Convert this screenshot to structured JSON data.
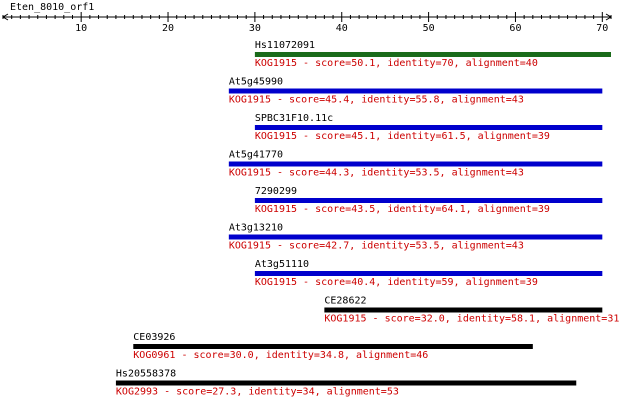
{
  "query": {
    "name": "Eten_8010_orf1",
    "axis_max": 71,
    "tick_labels": [
      10,
      20,
      30,
      40,
      50,
      60,
      70
    ]
  },
  "chart_data": {
    "type": "alignment-map",
    "x_range": [
      1,
      71
    ],
    "hits": [
      {
        "id": "Hs11072091",
        "start": 30,
        "end": 71,
        "color": "#1a6b1a",
        "label": "KOG1915 - score=50.1, identity=70, alignment=40"
      },
      {
        "id": "At5g45990",
        "start": 27,
        "end": 70,
        "color": "#0000cc",
        "label": "KOG1915 - score=45.4, identity=55.8, alignment=43"
      },
      {
        "id": "SPBC31F10.11c",
        "start": 30,
        "end": 70,
        "color": "#0000cc",
        "label": "KOG1915 - score=45.1, identity=61.5, alignment=39"
      },
      {
        "id": "At5g41770",
        "start": 27,
        "end": 70,
        "color": "#0000cc",
        "label": "KOG1915 - score=44.3, identity=53.5, alignment=43"
      },
      {
        "id": "7290299",
        "start": 30,
        "end": 70,
        "color": "#0000cc",
        "label": "KOG1915 - score=43.5, identity=64.1, alignment=39"
      },
      {
        "id": "At3g13210",
        "start": 27,
        "end": 70,
        "color": "#0000cc",
        "label": "KOG1915 - score=42.7, identity=53.5, alignment=43"
      },
      {
        "id": "At3g51110",
        "start": 30,
        "end": 70,
        "color": "#0000cc",
        "label": "KOG1915 - score=40.4, identity=59, alignment=39"
      },
      {
        "id": "CE28622",
        "start": 38,
        "end": 70,
        "color": "#000000",
        "label": "KOG1915 - score=32.0, identity=58.1, alignment=31"
      },
      {
        "id": "CE03926",
        "start": 16,
        "end": 62,
        "color": "#000000",
        "label": "KOG0961 - score=30.0, identity=34.8, alignment=46"
      },
      {
        "id": "Hs20558378",
        "start": 14,
        "end": 67,
        "color": "#000000",
        "label": "KOG2993 - score=27.3, identity=34, alignment=53"
      }
    ]
  },
  "colors": {
    "axis": "#000000",
    "hit_label": "#cc0000",
    "id_label": "#000000"
  }
}
